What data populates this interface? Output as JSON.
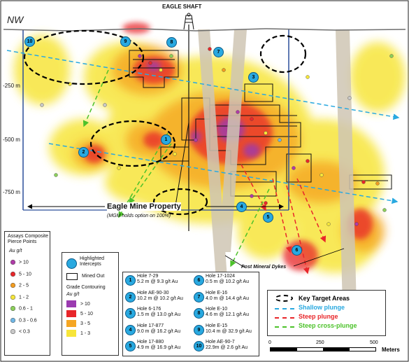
{
  "map": {
    "corner_label": "NW",
    "shaft_label": "EAGLE SHAFT",
    "depth_labels": [
      "-250 m",
      "-500 m",
      "-750 m"
    ],
    "property_label": "Eagle Mine Property",
    "property_note": "(MGM holds option on 100%)",
    "dykes_label": "Post Mineral Dykes",
    "intercepts_on_map": [
      "10",
      "9",
      "8",
      "7",
      "3",
      "1",
      "2",
      "4",
      "5",
      "6"
    ]
  },
  "assays_legend": {
    "title": "Assays Composite Pierce Points",
    "unit": "Au g/t",
    "items": [
      {
        "label": "> 10",
        "color": "#b03aa8"
      },
      {
        "label": "5 - 10",
        "color": "#e8262a"
      },
      {
        "label": "2 - 5",
        "color": "#f39c1f"
      },
      {
        "label": "1 - 2",
        "color": "#f5e63a"
      },
      {
        "label": "0.6 - 1",
        "color": "#8ccf5a"
      },
      {
        "label": "0.3 - 0.6",
        "color": "#6fb7e6"
      },
      {
        "label": "< 0.3",
        "color": "#c8c8c8"
      }
    ]
  },
  "grade_legend": {
    "highlighted_label": "Highlighted Intercepts",
    "mined_label": "Mined Out",
    "contour_title": "Grade Contouring",
    "unit": "Au g/t",
    "items": [
      {
        "label": "> 10",
        "color": "#9b3bb0"
      },
      {
        "label": "5 - 10",
        "color": "#e8262a"
      },
      {
        "label": "3 - 5",
        "color": "#f5a623"
      },
      {
        "label": "1 - 3",
        "color": "#f7e53a"
      }
    ]
  },
  "holes": [
    {
      "num": "1",
      "name": "Hole  7-29",
      "value": "5.2 m @ 9.3 g/t Au"
    },
    {
      "num": "2",
      "name": "Hole  AE-90-30",
      "value": "10.2 m @ 10.2 g/t Au"
    },
    {
      "num": "3",
      "name": "Hole  6-176",
      "value": "1.5 m @ 13.0 g/t Au"
    },
    {
      "num": "4",
      "name": "Hole  17-877",
      "value": "9.0 m @ 16.2 g/t Au"
    },
    {
      "num": "5",
      "name": "Hole  17-880",
      "value": "4.9 m @ 16.9 g/t Au"
    },
    {
      "num": "6",
      "name": "Hole  17-1024",
      "value": "0.5 m @ 10.2 g/t Au"
    },
    {
      "num": "7",
      "name": "Hole  E-16",
      "value": "4.0 m @ 14.4 g/t Au"
    },
    {
      "num": "8",
      "name": "Hole  E-10",
      "value": "4.6 m @ 12.1 g/t Au"
    },
    {
      "num": "9",
      "name": "Hole  E-15",
      "value": "10.4 m @ 32.9 g/t Au"
    },
    {
      "num": "10",
      "name": "Hole AE-90-7",
      "value": "22.9m @ 2.6 g/t Au"
    }
  ],
  "targets_legend": {
    "items": [
      {
        "label": "Key Target Areas",
        "color": "#000000"
      },
      {
        "label": "Shallow plunge",
        "color": "#29a9e0"
      },
      {
        "label": "Steep plunge",
        "color": "#e8262a"
      },
      {
        "label": "Steep cross-plunge",
        "color": "#4cc22a"
      }
    ]
  },
  "scale": {
    "ticks": [
      "0",
      "250",
      "500"
    ],
    "unit": "Meters"
  }
}
